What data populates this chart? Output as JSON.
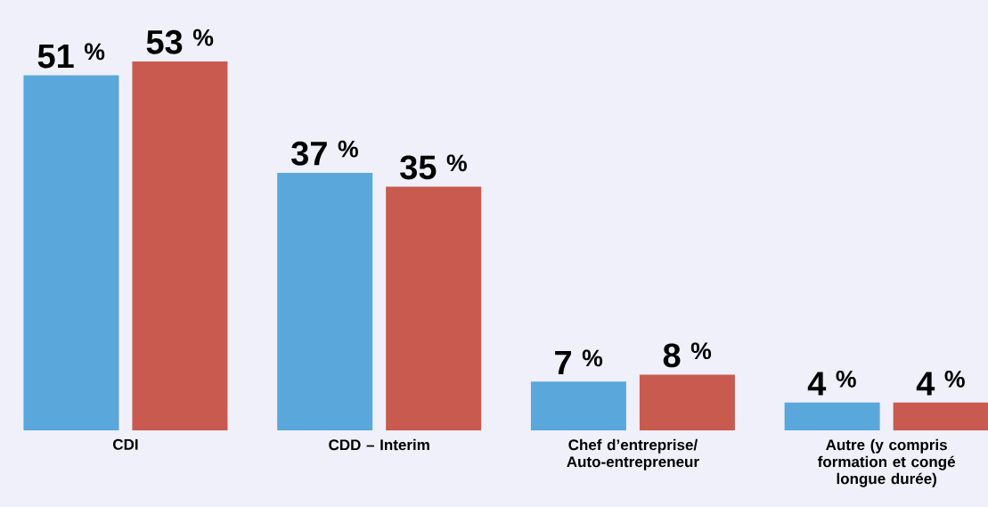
{
  "chart_data": {
    "type": "bar",
    "categories": [
      "CDI",
      "CDD – Interim",
      "Chef d’entreprise/ Auto-entrepreneur",
      "Autre (y compris formation et congé longue durée)"
    ],
    "series": [
      {
        "color": "#5aa7dc",
        "values": [
          51,
          37,
          7,
          4
        ],
        "value_labels": [
          "51 $^{%}$",
          "37 $^{%}$",
          "7 $^{%}$",
          "4 $^{%}$"
        ]
      },
      {
        "color": "#c95a4f",
        "values": [
          53,
          35,
          8,
          4
        ],
        "value_labels": [
          "53 $^{%}$",
          "35 $^{%}$",
          "8 $^{%}$",
          "4 $^{%}$"
        ]
      }
    ]
  }
}
